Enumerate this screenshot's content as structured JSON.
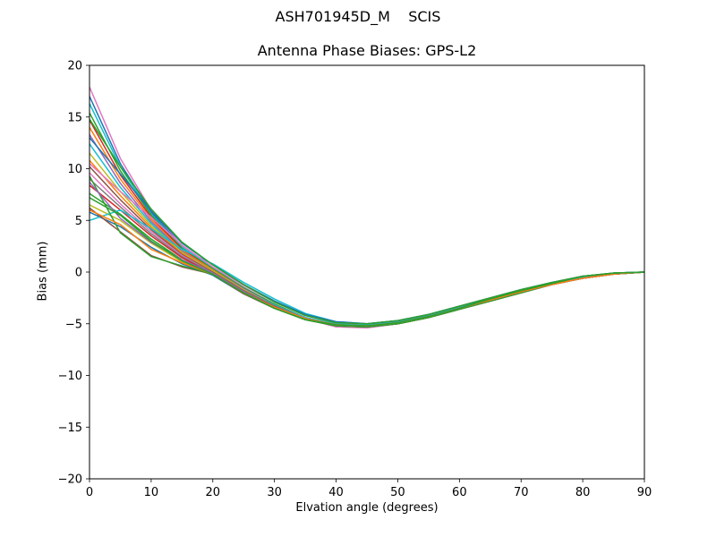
{
  "chart_data": {
    "type": "line",
    "suptitle": "ASH701945D_M    SCIS",
    "title": "Antenna Phase Biases: GPS-L2",
    "xlabel": "Elvation angle (degrees)",
    "ylabel": "Bias (mm)",
    "xlim": [
      0,
      90
    ],
    "ylim": [
      -20,
      20
    ],
    "xticks": [
      0,
      10,
      20,
      30,
      40,
      50,
      60,
      70,
      80,
      90
    ],
    "yticks": [
      -20,
      -15,
      -10,
      -5,
      0,
      5,
      10,
      15,
      20
    ],
    "ytick_labels": [
      "−20",
      "−15",
      "−10",
      "−5",
      "0",
      "5",
      "10",
      "15",
      "20"
    ],
    "grid": false,
    "x": [
      0,
      5,
      10,
      15,
      20,
      25,
      30,
      35,
      40,
      45,
      50,
      55,
      60,
      65,
      70,
      75,
      80,
      85,
      90
    ],
    "series": [
      {
        "color": "#e377c2",
        "values": [
          17.9,
          11.0,
          6.0,
          2.5,
          0.3,
          -1.6,
          -3.2,
          -4.5,
          -5.3,
          -5.4,
          -5.0,
          -4.4,
          -3.6,
          -2.8,
          -2.0,
          -1.2,
          -0.6,
          -0.2,
          0.0
        ]
      },
      {
        "color": "#1f77b4",
        "values": [
          17.0,
          10.5,
          5.8,
          2.4,
          0.2,
          -1.6,
          -3.1,
          -4.4,
          -5.2,
          -5.3,
          -4.9,
          -4.3,
          -3.5,
          -2.7,
          -1.9,
          -1.2,
          -0.6,
          -0.2,
          0.0
        ]
      },
      {
        "color": "#17becf",
        "values": [
          16.3,
          10.2,
          5.6,
          2.4,
          0.4,
          -1.5,
          -3.1,
          -4.4,
          -5.1,
          -5.3,
          -4.9,
          -4.3,
          -3.5,
          -2.6,
          -1.9,
          -1.2,
          -0.6,
          -0.2,
          0.0
        ]
      },
      {
        "color": "#2ca02c",
        "values": [
          15.4,
          9.8,
          5.5,
          2.3,
          0.3,
          -1.5,
          -3.1,
          -4.4,
          -5.1,
          -5.2,
          -4.9,
          -4.3,
          -3.5,
          -2.7,
          -1.9,
          -1.1,
          -0.5,
          -0.1,
          0.0
        ]
      },
      {
        "color": "#d62728",
        "values": [
          14.7,
          9.4,
          5.3,
          2.2,
          0.2,
          -1.6,
          -3.2,
          -4.4,
          -5.1,
          -5.3,
          -4.9,
          -4.3,
          -3.5,
          -2.7,
          -1.9,
          -1.2,
          -0.6,
          -0.2,
          0.0
        ]
      },
      {
        "color": "#ff7f0e",
        "values": [
          14.0,
          9.0,
          5.1,
          2.1,
          0.2,
          -1.6,
          -3.2,
          -4.4,
          -5.1,
          -5.2,
          -4.9,
          -4.3,
          -3.5,
          -2.7,
          -1.9,
          -1.2,
          -0.6,
          -0.2,
          0.0
        ]
      },
      {
        "color": "#9467bd",
        "values": [
          13.3,
          8.6,
          4.9,
          2.0,
          0.1,
          -1.6,
          -3.2,
          -4.4,
          -5.1,
          -5.2,
          -4.9,
          -4.3,
          -3.5,
          -2.7,
          -1.9,
          -1.2,
          -0.6,
          -0.2,
          0.0
        ]
      },
      {
        "color": "#17becf",
        "values": [
          12.4,
          8.2,
          4.7,
          1.9,
          0.1,
          -1.7,
          -3.2,
          -4.4,
          -5.0,
          -5.1,
          -4.8,
          -4.2,
          -3.4,
          -2.6,
          -1.8,
          -1.1,
          -0.5,
          -0.1,
          0.0
        ]
      },
      {
        "color": "#bcbd22",
        "values": [
          11.5,
          7.8,
          4.5,
          1.9,
          0.1,
          -1.7,
          -3.3,
          -4.5,
          -5.1,
          -5.2,
          -4.9,
          -4.3,
          -3.5,
          -2.7,
          -1.9,
          -1.2,
          -0.6,
          -0.2,
          0.0
        ]
      },
      {
        "color": "#ff7f0e",
        "values": [
          10.8,
          7.4,
          4.3,
          1.8,
          0.0,
          -1.8,
          -3.3,
          -4.5,
          -5.1,
          -5.2,
          -4.9,
          -4.3,
          -3.5,
          -2.7,
          -1.9,
          -1.2,
          -0.6,
          -0.2,
          0.0
        ]
      },
      {
        "color": "#8c564b",
        "values": [
          10.2,
          7.0,
          4.1,
          1.7,
          0.0,
          -1.8,
          -3.3,
          -4.5,
          -5.1,
          -5.2,
          -4.9,
          -4.3,
          -3.5,
          -2.7,
          -1.9,
          -1.2,
          -0.6,
          -0.2,
          0.0
        ]
      },
      {
        "color": "#e377c2",
        "values": [
          9.6,
          6.6,
          3.9,
          1.6,
          -0.1,
          -1.9,
          -3.4,
          -4.5,
          -5.2,
          -5.3,
          -5.0,
          -4.4,
          -3.6,
          -2.8,
          -2.0,
          -1.2,
          -0.6,
          -0.2,
          0.0
        ]
      },
      {
        "color": "#7f7f7f",
        "values": [
          9.0,
          6.3,
          3.7,
          1.5,
          -0.1,
          -1.9,
          -3.4,
          -4.5,
          -5.1,
          -5.2,
          -4.9,
          -4.3,
          -3.5,
          -2.7,
          -1.9,
          -1.2,
          -0.6,
          -0.2,
          0.0
        ]
      },
      {
        "color": "#d62728",
        "values": [
          8.4,
          6.0,
          3.5,
          1.4,
          -0.2,
          -2.0,
          -3.4,
          -4.6,
          -5.2,
          -5.3,
          -5.0,
          -4.4,
          -3.6,
          -2.7,
          -1.9,
          -1.2,
          -0.6,
          -0.2,
          0.0
        ]
      },
      {
        "color": "#2ca02c",
        "values": [
          7.6,
          5.6,
          3.2,
          1.2,
          -0.3,
          -2.0,
          -3.5,
          -4.6,
          -5.2,
          -5.3,
          -5.0,
          -4.4,
          -3.6,
          -2.8,
          -2.0,
          -1.2,
          -0.6,
          -0.2,
          0.0
        ]
      },
      {
        "color": "#bcbd22",
        "values": [
          6.5,
          5.0,
          2.8,
          1.0,
          -0.3,
          -2.1,
          -3.5,
          -4.6,
          -5.2,
          -5.3,
          -5.0,
          -4.4,
          -3.6,
          -2.8,
          -2.0,
          -1.2,
          -0.6,
          -0.2,
          0.0
        ]
      },
      {
        "color": "#1f77b4",
        "values": [
          5.8,
          4.4,
          2.4,
          0.8,
          -0.3,
          -2.1,
          -3.5,
          -4.6,
          -5.2,
          -5.3,
          -5.0,
          -4.4,
          -3.6,
          -2.8,
          -2.0,
          -1.2,
          -0.6,
          -0.2,
          0.0
        ]
      },
      {
        "color": "#17becf",
        "values": [
          5.0,
          6.0,
          4.2,
          2.2,
          0.8,
          -1.0,
          -2.6,
          -4.0,
          -4.8,
          -5.0,
          -4.7,
          -4.1,
          -3.3,
          -2.5,
          -1.7,
          -1.0,
          -0.5,
          -0.1,
          0.0
        ]
      },
      {
        "color": "#8c564b",
        "values": [
          6.2,
          3.9,
          1.6,
          0.5,
          -0.2,
          -2.1,
          -3.5,
          -4.6,
          -5.2,
          -5.3,
          -5.0,
          -4.4,
          -3.6,
          -2.8,
          -2.0,
          -1.2,
          -0.6,
          -0.2,
          0.0
        ]
      },
      {
        "color": "#2ca02c",
        "values": [
          9.3,
          3.8,
          1.5,
          0.6,
          -0.2,
          -2.0,
          -3.5,
          -4.6,
          -5.2,
          -5.3,
          -5.0,
          -4.4,
          -3.6,
          -2.8,
          -2.0,
          -1.2,
          -0.6,
          -0.2,
          0.0
        ]
      },
      {
        "color": "#9467bd",
        "values": [
          8.7,
          5.2,
          2.9,
          1.2,
          -0.1,
          -1.9,
          -3.4,
          -4.5,
          -5.1,
          -5.2,
          -4.9,
          -4.3,
          -3.5,
          -2.7,
          -1.9,
          -1.2,
          -0.6,
          -0.2,
          0.0
        ]
      },
      {
        "color": "#ff7f0e",
        "values": [
          6.0,
          4.6,
          2.2,
          0.9,
          -0.2,
          -2.0,
          -3.4,
          -4.5,
          -5.1,
          -5.2,
          -4.9,
          -4.3,
          -3.5,
          -2.7,
          -1.9,
          -1.2,
          -0.6,
          -0.2,
          0.0
        ]
      },
      {
        "color": "#e377c2",
        "values": [
          10.5,
          7.8,
          5.3,
          2.6,
          0.5,
          -1.3,
          -2.9,
          -4.2,
          -4.9,
          -5.0,
          -4.7,
          -4.1,
          -3.3,
          -2.5,
          -1.7,
          -1.0,
          -0.4,
          -0.1,
          0.0
        ]
      },
      {
        "color": "#1f77b4",
        "values": [
          13.0,
          9.5,
          5.9,
          2.8,
          0.7,
          -1.2,
          -2.8,
          -4.1,
          -4.8,
          -5.0,
          -4.7,
          -4.1,
          -3.3,
          -2.5,
          -1.7,
          -1.0,
          -0.4,
          -0.1,
          0.0
        ]
      },
      {
        "color": "#2ca02c",
        "values": [
          14.8,
          10.2,
          6.1,
          2.9,
          0.7,
          -1.2,
          -2.9,
          -4.2,
          -4.9,
          -5.0,
          -4.7,
          -4.1,
          -3.3,
          -2.5,
          -1.7,
          -1.0,
          -0.4,
          -0.1,
          0.0
        ]
      },
      {
        "color": "#2ca02c",
        "values": [
          7.2,
          5.5,
          3.0,
          1.1,
          -0.2,
          -2.0,
          -3.5,
          -4.6,
          -5.1,
          -5.2,
          -4.9,
          -4.3,
          -3.5,
          -2.6,
          -1.8,
          -1.1,
          -0.4,
          -0.1,
          0.0
        ]
      }
    ]
  }
}
